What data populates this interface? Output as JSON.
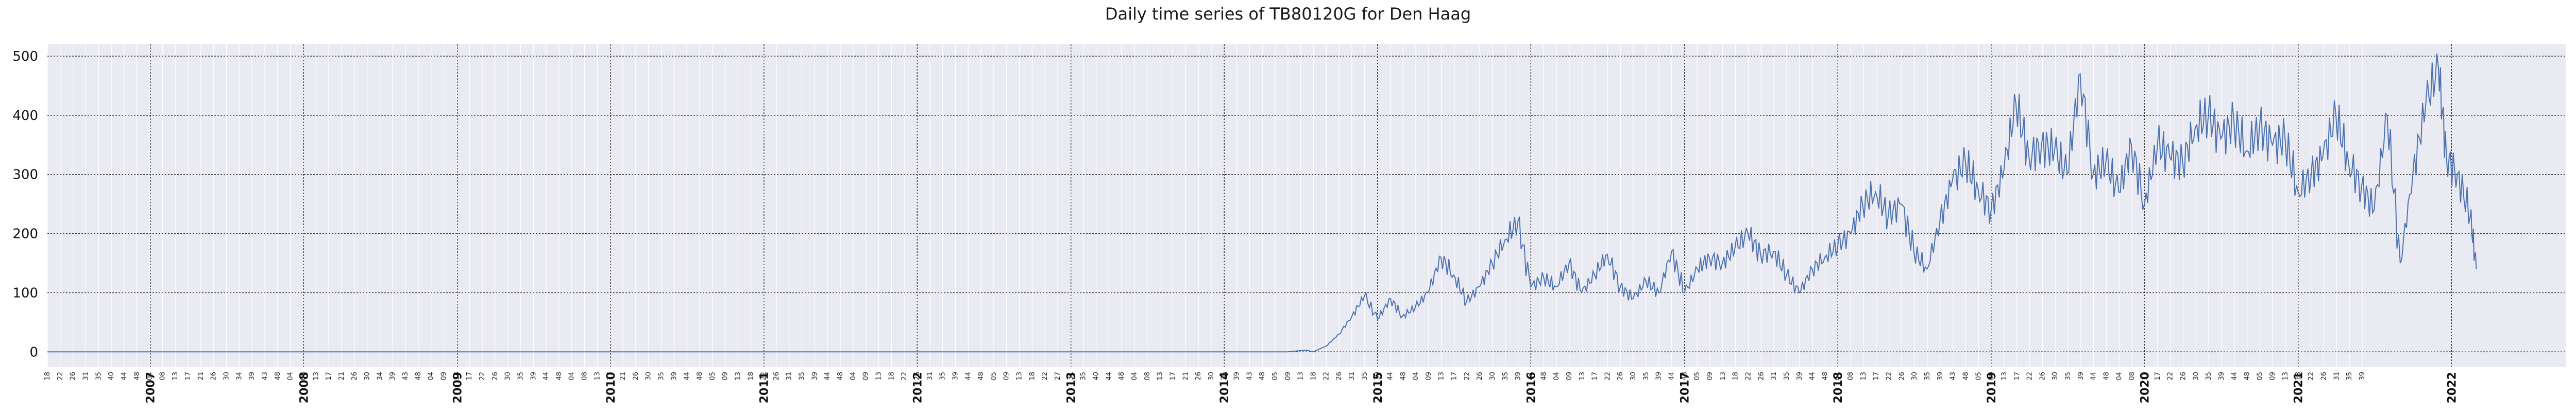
{
  "chart_data": {
    "type": "line",
    "title": "Daily time series of TB80120G for Den Haag",
    "xlabel": "",
    "ylabel": "",
    "x_range": [
      "2006-05-01",
      "2022-09-30"
    ],
    "ylim": [
      -25,
      520
    ],
    "yticks": [
      0,
      100,
      200,
      300,
      400,
      500
    ],
    "year_ticks": [
      "2007",
      "2008",
      "2009",
      "2010",
      "2011",
      "2012",
      "2013",
      "2014",
      "2015",
      "2016",
      "2017",
      "2018",
      "2019",
      "2020",
      "2021",
      "2022"
    ],
    "minor_week_ticks": [
      "18",
      "22",
      "26",
      "31",
      "35",
      "40",
      "44",
      "48",
      "04",
      "08",
      "13",
      "17",
      "21",
      "26",
      "30",
      "34",
      "39",
      "43",
      "48",
      "04",
      "08",
      "13",
      "17",
      "21",
      "26",
      "30",
      "34",
      "39",
      "43",
      "48",
      "04",
      "09",
      "13",
      "17",
      "22",
      "26",
      "30",
      "35",
      "39",
      "44",
      "48",
      "04",
      "08",
      "13",
      "17",
      "21",
      "26",
      "30",
      "35",
      "39",
      "44",
      "48",
      "05",
      "09",
      "13",
      "18",
      "22",
      "26",
      "31",
      "35",
      "39",
      "44",
      "48",
      "04",
      "09",
      "13",
      "18",
      "22",
      "26",
      "31",
      "35",
      "39",
      "44",
      "48",
      "05",
      "09",
      "13",
      "18",
      "22",
      "27",
      "31",
      "35",
      "40",
      "44",
      "48",
      "04",
      "08",
      "13",
      "17",
      "21",
      "26",
      "30",
      "35",
      "39",
      "43",
      "48",
      "05",
      "09",
      "13",
      "18",
      "22",
      "26",
      "31",
      "35",
      "39",
      "44",
      "48",
      "04",
      "09",
      "13",
      "17",
      "22",
      "26",
      "30",
      "35",
      "39",
      "44",
      "48",
      "04",
      "09",
      "13",
      "17",
      "22",
      "26",
      "30",
      "35",
      "39",
      "44",
      "48",
      "05",
      "09",
      "13",
      "18",
      "22",
      "26",
      "31",
      "35",
      "39",
      "44",
      "48",
      "04",
      "08",
      "13",
      "17",
      "22",
      "26",
      "30",
      "35",
      "39",
      "43",
      "48",
      "05",
      "09",
      "13",
      "17",
      "22",
      "26",
      "30",
      "35",
      "39",
      "44",
      "48",
      "04",
      "08",
      "13",
      "17",
      "22",
      "26",
      "30",
      "35",
      "39",
      "44",
      "48",
      "05",
      "09",
      "13",
      "18",
      "22",
      "26",
      "31",
      "35",
      "39"
    ],
    "grid": true,
    "legend": "none",
    "series": [
      {
        "color": "#4c72b0",
        "points": [
          [
            "2006-05-01",
            0
          ],
          [
            "2014-06-01",
            0
          ],
          [
            "2014-07-15",
            3
          ],
          [
            "2014-08-01",
            0
          ],
          [
            "2014-09-01",
            10
          ],
          [
            "2014-10-01",
            30
          ],
          [
            "2014-11-01",
            60
          ],
          [
            "2014-12-01",
            95
          ],
          [
            "2015-01-01",
            55
          ],
          [
            "2015-02-01",
            90
          ],
          [
            "2015-03-01",
            60
          ],
          [
            "2015-04-01",
            75
          ],
          [
            "2015-05-01",
            100
          ],
          [
            "2015-06-01",
            160
          ],
          [
            "2015-07-01",
            130
          ],
          [
            "2015-08-01",
            85
          ],
          [
            "2015-09-01",
            110
          ],
          [
            "2015-10-01",
            150
          ],
          [
            "2015-11-01",
            190
          ],
          [
            "2015-12-01",
            220
          ],
          [
            "2016-01-01",
            110
          ],
          [
            "2016-02-01",
            125
          ],
          [
            "2016-03-01",
            110
          ],
          [
            "2016-04-01",
            150
          ],
          [
            "2016-05-01",
            100
          ],
          [
            "2016-06-01",
            130
          ],
          [
            "2016-07-01",
            165
          ],
          [
            "2016-08-01",
            110
          ],
          [
            "2016-09-01",
            90
          ],
          [
            "2016-10-01",
            120
          ],
          [
            "2016-11-01",
            100
          ],
          [
            "2016-12-01",
            170
          ],
          [
            "2017-01-01",
            100
          ],
          [
            "2017-02-01",
            140
          ],
          [
            "2017-03-01",
            160
          ],
          [
            "2017-04-01",
            150
          ],
          [
            "2017-05-01",
            175
          ],
          [
            "2017-06-01",
            200
          ],
          [
            "2017-07-01",
            165
          ],
          [
            "2017-08-01",
            170
          ],
          [
            "2017-09-01",
            130
          ],
          [
            "2017-10-01",
            100
          ],
          [
            "2017-11-01",
            140
          ],
          [
            "2017-12-01",
            160
          ],
          [
            "2018-01-01",
            180
          ],
          [
            "2018-02-01",
            200
          ],
          [
            "2018-03-01",
            250
          ],
          [
            "2018-04-01",
            270
          ],
          [
            "2018-05-01",
            230
          ],
          [
            "2018-06-01",
            250
          ],
          [
            "2018-07-01",
            170
          ],
          [
            "2018-08-01",
            140
          ],
          [
            "2018-09-01",
            220
          ],
          [
            "2018-10-01",
            290
          ],
          [
            "2018-11-01",
            320
          ],
          [
            "2018-12-01",
            275
          ],
          [
            "2019-01-01",
            240
          ],
          [
            "2019-02-01",
            310
          ],
          [
            "2019-03-01",
            420
          ],
          [
            "2019-04-01",
            330
          ],
          [
            "2019-05-01",
            350
          ],
          [
            "2019-06-01",
            340
          ],
          [
            "2019-07-01",
            300
          ],
          [
            "2019-08-01",
            470
          ],
          [
            "2019-09-01",
            300
          ],
          [
            "2019-10-01",
            320
          ],
          [
            "2019-11-01",
            270
          ],
          [
            "2019-12-01",
            350
          ],
          [
            "2020-01-01",
            250
          ],
          [
            "2020-02-01",
            350
          ],
          [
            "2020-03-01",
            330
          ],
          [
            "2020-04-01",
            320
          ],
          [
            "2020-05-01",
            380
          ],
          [
            "2020-06-01",
            400
          ],
          [
            "2020-07-01",
            360
          ],
          [
            "2020-08-01",
            390
          ],
          [
            "2020-09-01",
            340
          ],
          [
            "2020-10-01",
            380
          ],
          [
            "2020-11-01",
            350
          ],
          [
            "2020-12-01",
            360
          ],
          [
            "2021-01-01",
            270
          ],
          [
            "2021-02-01",
            300
          ],
          [
            "2021-03-01",
            330
          ],
          [
            "2021-04-01",
            400
          ],
          [
            "2021-05-01",
            320
          ],
          [
            "2021-06-01",
            280
          ],
          [
            "2021-07-01",
            240
          ],
          [
            "2021-08-01",
            400
          ],
          [
            "2021-09-01",
            150
          ],
          [
            "2021-10-01",
            300
          ],
          [
            "2021-11-01",
            420
          ],
          [
            "2021-12-01",
            480
          ],
          [
            "2021-12-20",
            330
          ],
          [
            "2022-01-15",
            300
          ],
          [
            "2022-02-15",
            230
          ],
          [
            "2022-03-01",
            140
          ]
        ]
      }
    ]
  }
}
